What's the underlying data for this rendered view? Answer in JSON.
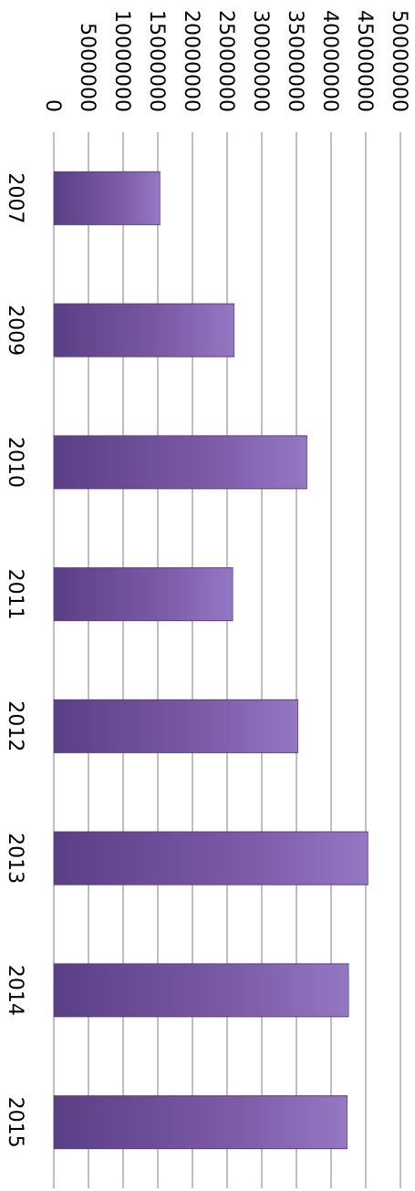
{
  "chart_data": {
    "type": "bar",
    "orientation": "vertical",
    "rotation": "90deg-clockwise",
    "categories": [
      "2007",
      "2009",
      "2010",
      "2011",
      "2012",
      "2013",
      "2014",
      "2015"
    ],
    "values": [
      15300000,
      26000000,
      36500000,
      25800000,
      35200000,
      45300000,
      42500000,
      42300000
    ],
    "y_ticks": [
      "0",
      "5000000",
      "10000000",
      "15000000",
      "20000000",
      "25000000",
      "30000000",
      "35000000",
      "40000000",
      "45000000",
      "50000000"
    ],
    "ylim": [
      0,
      50000000
    ],
    "grid": true,
    "legend": "none",
    "bar_color": "#7b5aa6",
    "bar_color_light": "#9477c3",
    "bar_color_dark": "#5a3f85"
  }
}
